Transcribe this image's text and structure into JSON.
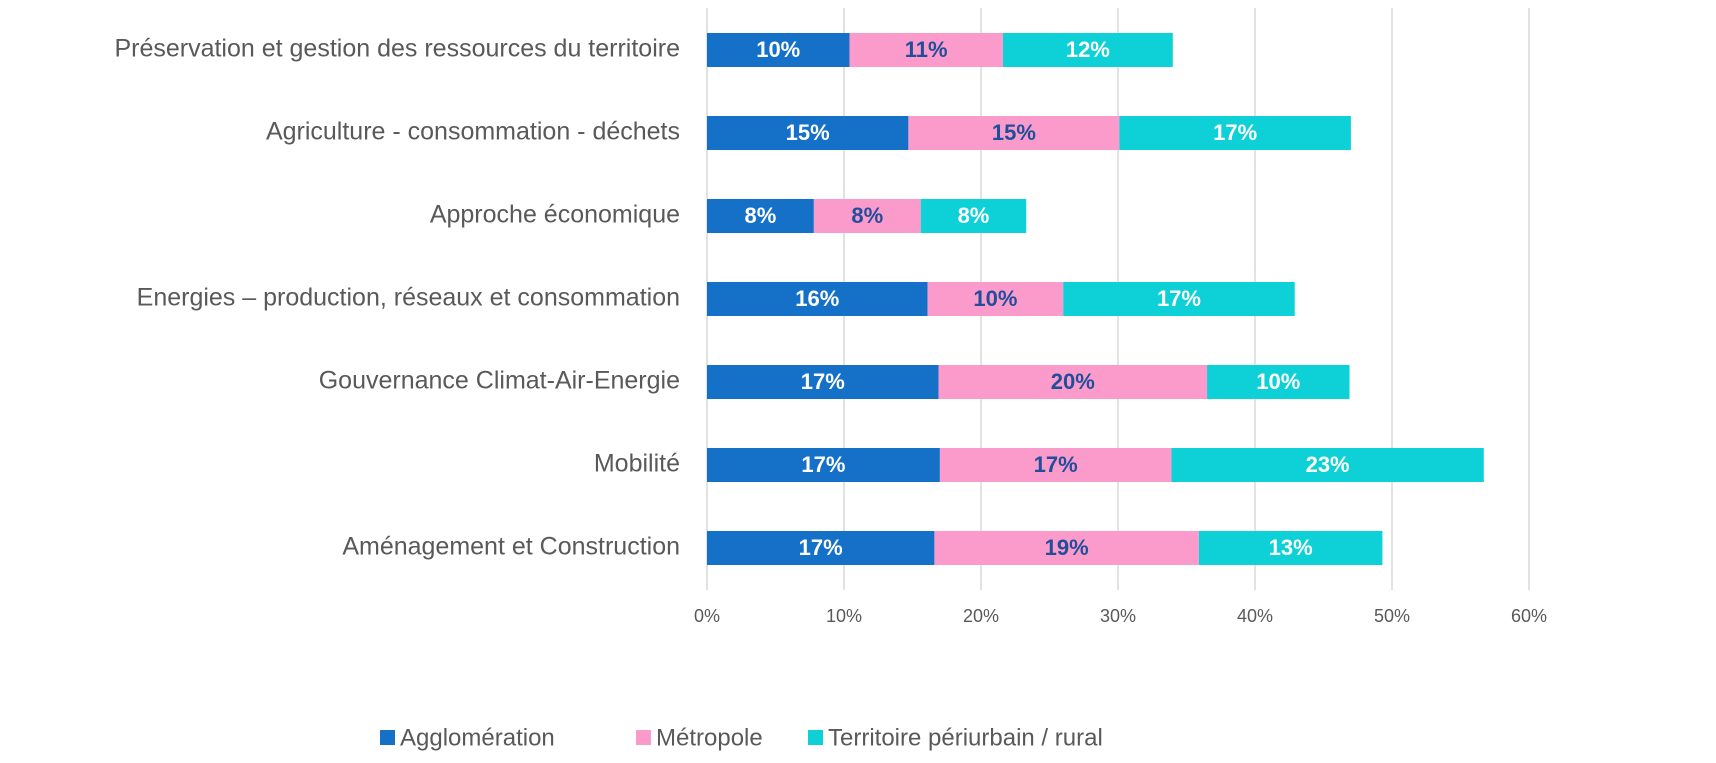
{
  "chart_data": {
    "type": "stacked_barh",
    "categories": [
      "Préservation et gestion des ressources du territoire",
      "Agriculture - consommation - déchets",
      "Approche économique",
      "Energies – production, réseaux et consommation",
      "Gouvernance Climat-Air-Energie",
      "Mobilité",
      "Aménagement et Construction"
    ],
    "series": [
      {
        "name": "Agglomération",
        "color": "#1570c8",
        "label_color": "#ffffff",
        "values": [
          10.4,
          14.7,
          7.8,
          16.1,
          16.9,
          17.0,
          16.6
        ],
        "value_labels": [
          "10%",
          "15%",
          "8%",
          "16%",
          "17%",
          "17%",
          "17%"
        ]
      },
      {
        "name": "Métropole",
        "color": "#fb9bcb",
        "label_color": "#1f4e9a",
        "values": [
          11.2,
          15.4,
          7.8,
          9.9,
          19.6,
          16.9,
          19.3
        ],
        "value_labels": [
          "11%",
          "15%",
          "8%",
          "10%",
          "20%",
          "17%",
          "19%"
        ]
      },
      {
        "name": "Territoire périurbain / rural",
        "color": "#0ed1d8",
        "label_color": "#ffffff",
        "values": [
          12.4,
          16.9,
          7.7,
          16.9,
          10.4,
          22.8,
          13.4
        ],
        "value_labels": [
          "12%",
          "17%",
          "8%",
          "17%",
          "10%",
          "23%",
          "13%"
        ]
      }
    ],
    "xlim": [
      0,
      60
    ],
    "xticks": [
      {
        "value": 0,
        "label": "0%"
      },
      {
        "value": 10,
        "label": "10%"
      },
      {
        "value": 20,
        "label": "20%"
      },
      {
        "value": 30,
        "label": "30%"
      },
      {
        "value": 40,
        "label": "40%"
      },
      {
        "value": 50,
        "label": "50%"
      },
      {
        "value": 60,
        "label": "60%"
      }
    ],
    "grid": true,
    "legend": "bottom"
  }
}
